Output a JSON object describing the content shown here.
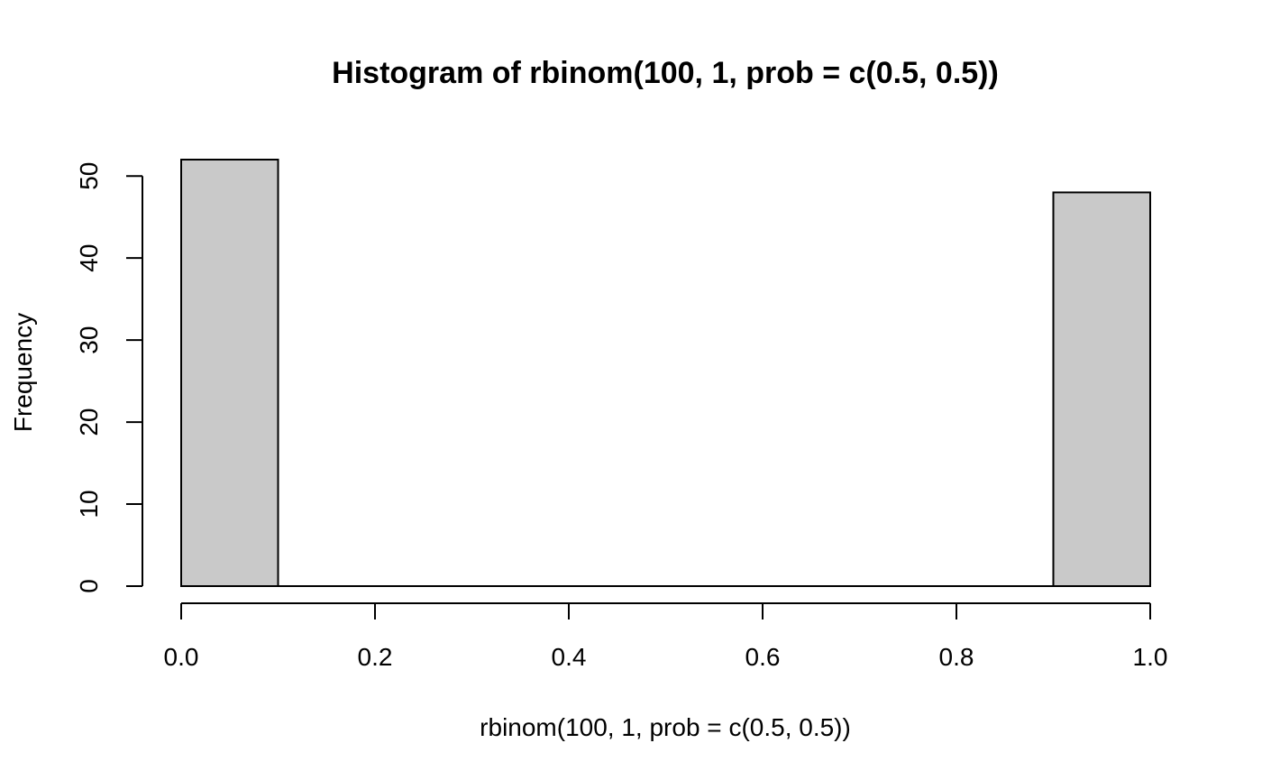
{
  "chart_data": {
    "type": "bar",
    "subtype": "histogram",
    "title": "Histogram of rbinom(100, 1, prob = c(0.5, 0.5))",
    "xlabel": "rbinom(100, 1, prob = c(0.5, 0.5))",
    "ylabel": "Frequency",
    "bins": [
      {
        "start": 0.0,
        "end": 0.1,
        "count": 52
      },
      {
        "start": 0.1,
        "end": 0.2,
        "count": 0
      },
      {
        "start": 0.2,
        "end": 0.3,
        "count": 0
      },
      {
        "start": 0.3,
        "end": 0.4,
        "count": 0
      },
      {
        "start": 0.4,
        "end": 0.5,
        "count": 0
      },
      {
        "start": 0.5,
        "end": 0.6,
        "count": 0
      },
      {
        "start": 0.6,
        "end": 0.7,
        "count": 0
      },
      {
        "start": 0.7,
        "end": 0.8,
        "count": 0
      },
      {
        "start": 0.8,
        "end": 0.9,
        "count": 0
      },
      {
        "start": 0.9,
        "end": 1.0,
        "count": 48
      }
    ],
    "xlim": [
      0,
      1
    ],
    "ylim": [
      0,
      52
    ],
    "x_ticks": [
      0.0,
      0.2,
      0.4,
      0.6,
      0.8,
      1.0
    ],
    "x_tick_labels": [
      "0.0",
      "0.2",
      "0.4",
      "0.6",
      "0.8",
      "1.0"
    ],
    "y_ticks": [
      0,
      10,
      20,
      30,
      40,
      50
    ],
    "y_tick_labels": [
      "0",
      "10",
      "20",
      "30",
      "40",
      "50"
    ],
    "bar_fill": "#c9c9c9",
    "bar_stroke": "#000000",
    "grid": false,
    "legend": "none"
  }
}
